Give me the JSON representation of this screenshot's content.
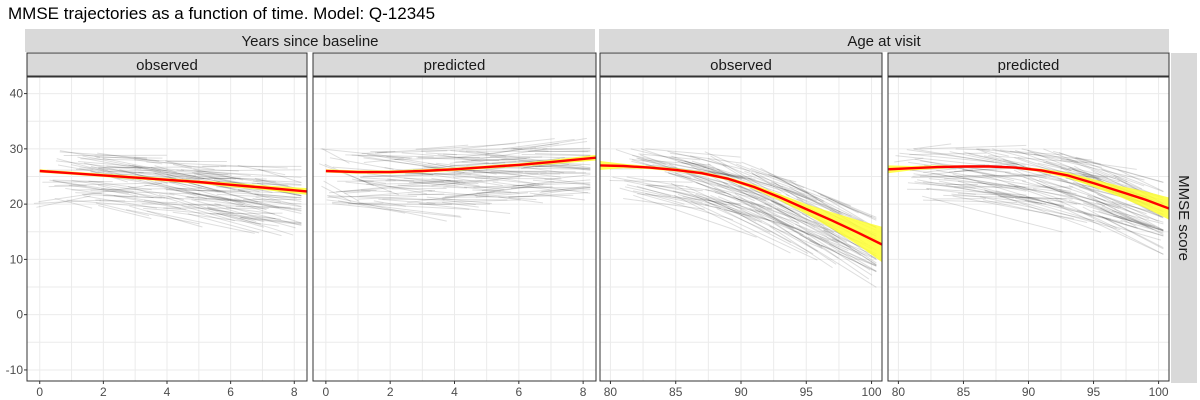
{
  "chart_data": {
    "type": "line",
    "title": "MMSE trajectories as a function of time. Model: Q-12345",
    "ylabel": "MMSE score",
    "ylim": [
      -12,
      43
    ],
    "yticks": [
      -10,
      0,
      10,
      20,
      30,
      40
    ],
    "colors": {
      "trajectory": "#000000",
      "smooth": "#ff0000",
      "ribbon": "#ffff33",
      "strip_fill": "#d9d9d9",
      "grid": "#ebebeb"
    },
    "groups": [
      {
        "label": "Years since baseline",
        "xlim": [
          -0.4,
          8.4
        ],
        "xticks": [
          0,
          2,
          4,
          6,
          8
        ],
        "panels": [
          {
            "label": "observed",
            "smooth": {
              "x": [
                0,
                1,
                2,
                3,
                4,
                5,
                6,
                7,
                8.4
              ],
              "y": [
                26.0,
                25.6,
                25.2,
                24.8,
                24.4,
                24.0,
                23.5,
                23.0,
                22.3
              ],
              "lower": [
                25.7,
                25.3,
                24.9,
                24.5,
                24.1,
                23.7,
                23.1,
                22.6,
                21.7
              ],
              "upper": [
                26.3,
                25.9,
                25.5,
                25.1,
                24.7,
                24.3,
                23.9,
                23.4,
                22.9
              ]
            }
          },
          {
            "label": "predicted",
            "smooth": {
              "x": [
                0,
                1,
                2,
                3,
                4,
                5,
                6,
                7,
                8.4
              ],
              "y": [
                26.0,
                25.8,
                25.8,
                26.0,
                26.3,
                26.7,
                27.1,
                27.6,
                28.4
              ],
              "lower": [
                25.7,
                25.5,
                25.5,
                25.7,
                26.0,
                26.4,
                26.8,
                27.2,
                27.9
              ],
              "upper": [
                26.3,
                26.1,
                26.1,
                26.3,
                26.6,
                27.0,
                27.4,
                28.0,
                28.9
              ]
            }
          }
        ]
      },
      {
        "label": "Age at visit",
        "xlim": [
          79.2,
          100.8
        ],
        "xticks": [
          80,
          85,
          90,
          95,
          100
        ],
        "panels": [
          {
            "label": "observed",
            "smooth": {
              "x": [
                79.2,
                81,
                83,
                85,
                87,
                89,
                91,
                93,
                95,
                97,
                99,
                100.8
              ],
              "y": [
                27.0,
                26.9,
                26.6,
                26.2,
                25.6,
                24.6,
                23.1,
                21.2,
                19.1,
                17.0,
                14.8,
                12.7
              ],
              "lower": [
                26.2,
                26.5,
                26.3,
                25.9,
                25.3,
                24.3,
                22.7,
                20.6,
                18.2,
                15.5,
                12.5,
                9.5
              ],
              "upper": [
                27.8,
                27.3,
                26.9,
                26.5,
                25.9,
                24.9,
                23.5,
                21.8,
                20.0,
                18.5,
                17.1,
                15.9
              ]
            }
          },
          {
            "label": "predicted",
            "smooth": {
              "x": [
                79.2,
                81,
                83,
                85,
                87,
                89,
                91,
                93,
                95,
                97,
                99,
                100.8
              ],
              "y": [
                26.3,
                26.5,
                26.7,
                26.8,
                26.8,
                26.6,
                26.1,
                25.2,
                23.8,
                22.3,
                20.8,
                19.2
              ],
              "lower": [
                25.6,
                26.1,
                26.4,
                26.6,
                26.6,
                26.4,
                25.8,
                24.7,
                23.1,
                21.3,
                19.3,
                17.2
              ],
              "upper": [
                27.0,
                26.9,
                27.0,
                27.0,
                27.0,
                26.8,
                26.4,
                25.7,
                24.5,
                23.3,
                22.3,
                21.2
              ]
            }
          }
        ]
      }
    ]
  }
}
